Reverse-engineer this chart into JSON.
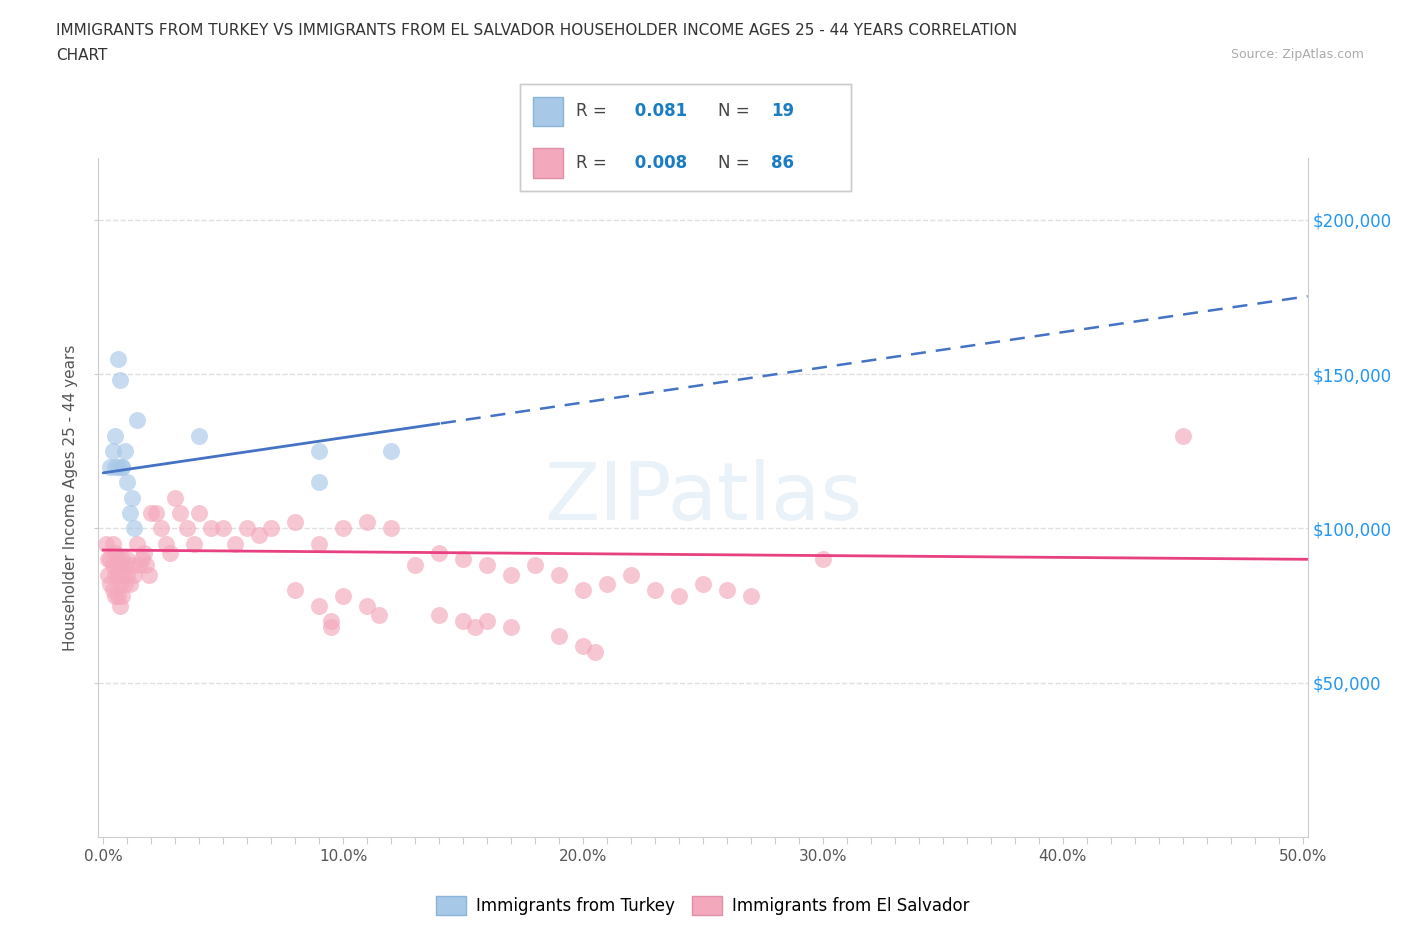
{
  "title_line1": "IMMIGRANTS FROM TURKEY VS IMMIGRANTS FROM EL SALVADOR HOUSEHOLDER INCOME AGES 25 - 44 YEARS CORRELATION",
  "title_line2": "CHART",
  "source_text": "Source: ZipAtlas.com",
  "ylabel": "Householder Income Ages 25 - 44 years",
  "xlim": [
    -0.002,
    0.502
  ],
  "ylim": [
    0,
    220000
  ],
  "xtick_labels": [
    "0.0%",
    "",
    "",
    "",
    "",
    "",
    "",
    "",
    "",
    "",
    "10.0%",
    "",
    "",
    "",
    "",
    "",
    "",
    "",
    "",
    "",
    "20.0%",
    "",
    "",
    "",
    "",
    "",
    "",
    "",
    "",
    "",
    "30.0%",
    "",
    "",
    "",
    "",
    "",
    "",
    "",
    "",
    "",
    "40.0%",
    "",
    "",
    "",
    "",
    "",
    "",
    "",
    "",
    "",
    "50.0%"
  ],
  "xtick_vals": [
    0.0,
    0.01,
    0.02,
    0.03,
    0.04,
    0.05,
    0.06,
    0.07,
    0.08,
    0.09,
    0.1,
    0.11,
    0.12,
    0.13,
    0.14,
    0.15,
    0.16,
    0.17,
    0.18,
    0.19,
    0.2,
    0.21,
    0.22,
    0.23,
    0.24,
    0.25,
    0.26,
    0.27,
    0.28,
    0.29,
    0.3,
    0.31,
    0.32,
    0.33,
    0.34,
    0.35,
    0.36,
    0.37,
    0.38,
    0.39,
    0.4,
    0.41,
    0.42,
    0.43,
    0.44,
    0.45,
    0.46,
    0.47,
    0.48,
    0.49,
    0.5
  ],
  "ytick_vals": [
    50000,
    100000,
    150000,
    200000
  ],
  "ytick_right_labels": [
    "$50,000",
    "$100,000",
    "$150,000",
    "$200,000"
  ],
  "R_turkey": 0.081,
  "N_turkey": 19,
  "R_salvador": 0.008,
  "N_salvador": 86,
  "turkey_fill": "#a8c8e8",
  "turkey_edge": "#a8c8e8",
  "salvador_fill": "#f4a8bc",
  "salvador_edge": "#f4a8bc",
  "turkey_line_color": "#4472c4",
  "salvador_line_color": "#e84080",
  "legend_label_turkey": "Immigrants from Turkey",
  "legend_label_salvador": "Immigrants from El Salvador",
  "grid_color": "#e0e0e0",
  "turkey_x": [
    0.003,
    0.004,
    0.005,
    0.005,
    0.006,
    0.006,
    0.007,
    0.008,
    0.008,
    0.009,
    0.01,
    0.011,
    0.012,
    0.013,
    0.014,
    0.04,
    0.09,
    0.09,
    0.12
  ],
  "turkey_y": [
    120000,
    125000,
    120000,
    130000,
    120000,
    155000,
    148000,
    120000,
    120000,
    125000,
    115000,
    105000,
    110000,
    100000,
    135000,
    130000,
    125000,
    115000,
    125000
  ],
  "salvador_x": [
    0.001,
    0.002,
    0.002,
    0.003,
    0.003,
    0.004,
    0.004,
    0.004,
    0.005,
    0.005,
    0.005,
    0.006,
    0.006,
    0.006,
    0.007,
    0.007,
    0.007,
    0.008,
    0.008,
    0.008,
    0.009,
    0.009,
    0.01,
    0.01,
    0.011,
    0.012,
    0.013,
    0.014,
    0.015,
    0.016,
    0.017,
    0.018,
    0.019,
    0.02,
    0.022,
    0.024,
    0.026,
    0.028,
    0.03,
    0.032,
    0.035,
    0.038,
    0.04,
    0.045,
    0.05,
    0.055,
    0.06,
    0.065,
    0.07,
    0.08,
    0.09,
    0.1,
    0.11,
    0.12,
    0.13,
    0.14,
    0.15,
    0.16,
    0.17,
    0.18,
    0.19,
    0.2,
    0.21,
    0.22,
    0.23,
    0.24,
    0.25,
    0.26,
    0.27,
    0.08,
    0.09,
    0.1,
    0.11,
    0.115,
    0.095,
    0.095,
    0.14,
    0.15,
    0.155,
    0.16,
    0.17,
    0.19,
    0.2,
    0.205,
    0.3,
    0.45
  ],
  "salvador_y": [
    95000,
    90000,
    85000,
    90000,
    82000,
    95000,
    88000,
    80000,
    92000,
    85000,
    78000,
    90000,
    85000,
    78000,
    88000,
    82000,
    75000,
    90000,
    85000,
    78000,
    88000,
    82000,
    90000,
    85000,
    82000,
    88000,
    85000,
    95000,
    88000,
    90000,
    92000,
    88000,
    85000,
    105000,
    105000,
    100000,
    95000,
    92000,
    110000,
    105000,
    100000,
    95000,
    105000,
    100000,
    100000,
    95000,
    100000,
    98000,
    100000,
    102000,
    95000,
    100000,
    102000,
    100000,
    88000,
    92000,
    90000,
    88000,
    85000,
    88000,
    85000,
    80000,
    82000,
    85000,
    80000,
    78000,
    82000,
    80000,
    78000,
    80000,
    75000,
    78000,
    75000,
    72000,
    70000,
    68000,
    72000,
    70000,
    68000,
    70000,
    68000,
    65000,
    62000,
    60000,
    90000,
    130000
  ]
}
